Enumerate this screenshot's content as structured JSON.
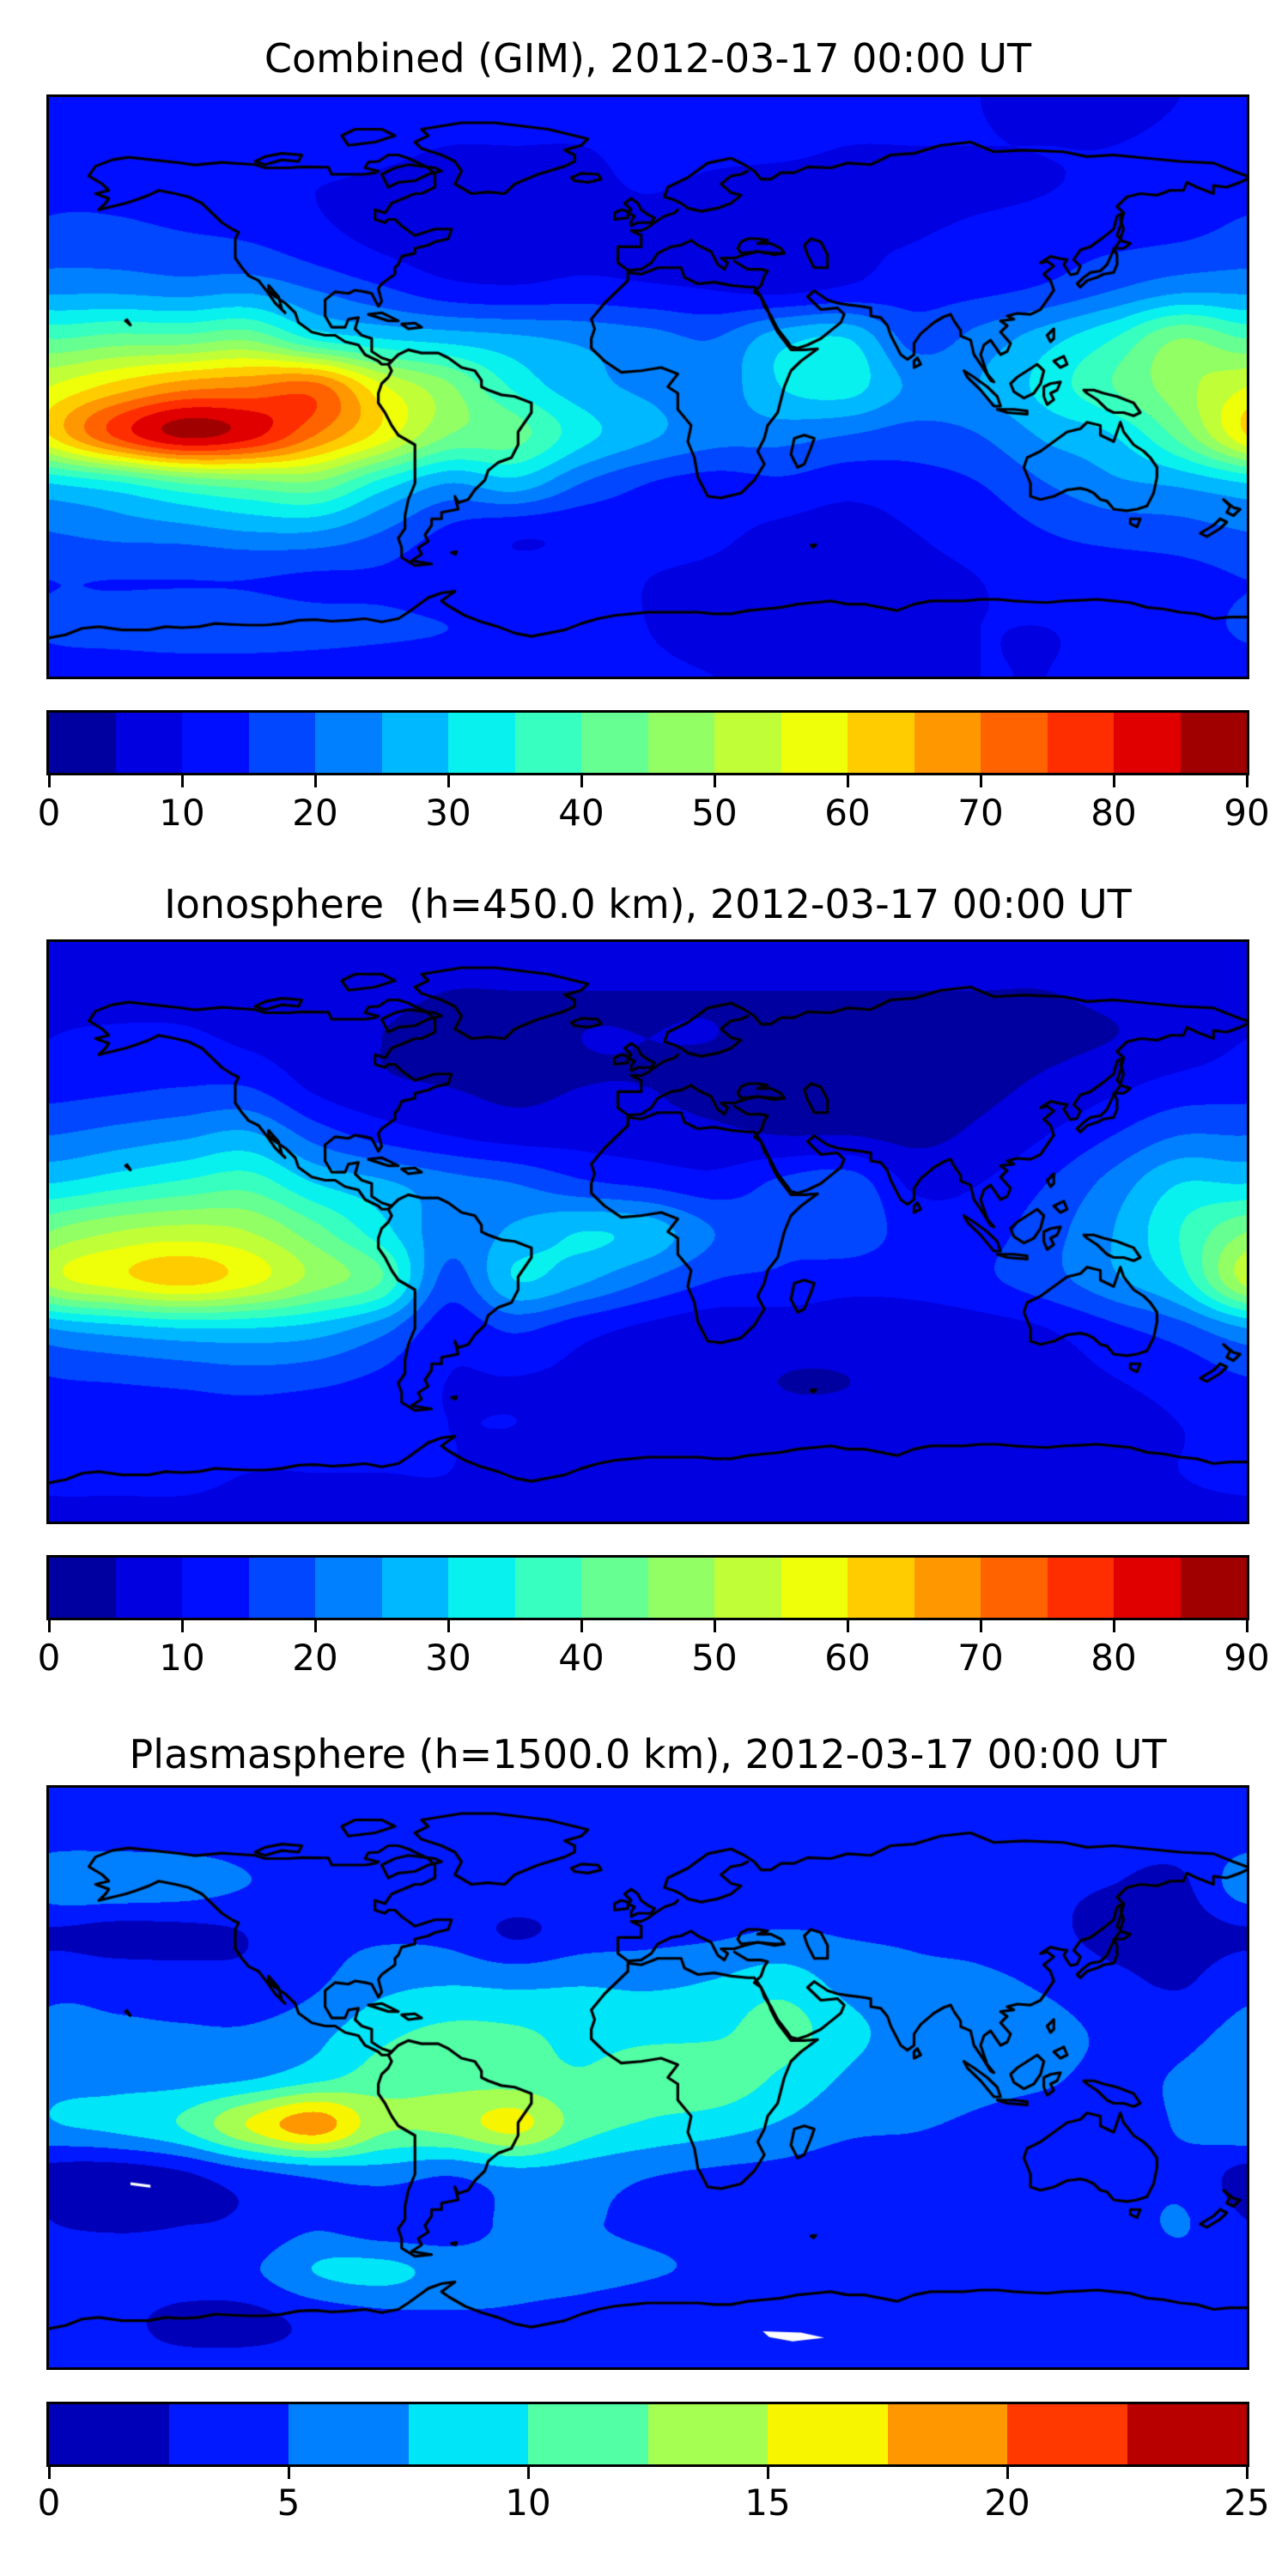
{
  "figure": {
    "background": "#ffffff",
    "line_color": "#000000"
  },
  "panels": [
    {
      "title": "Combined (GIM), 2012-03-17 00:00 UT"
    },
    {
      "title": "Ionosphere  (h=450.0 km), 2012-03-17 00:00 UT"
    },
    {
      "title": "Plasmasphere (h=1500.0 km), 2012-03-17 00:00 UT"
    }
  ],
  "chart_data": [
    {
      "type": "heatmap",
      "title": "Combined (GIM), 2012-03-17 00:00 UT",
      "projection": "equirectangular world map with coastlines",
      "xlabel": "",
      "ylabel": "",
      "lon": {
        "start": -180,
        "step": 20,
        "n": 19
      },
      "lat": {
        "start": 90,
        "step": -15,
        "n": 13
      },
      "vmin": 0,
      "vmax": 90,
      "n_levels": 18,
      "colormap": "jet",
      "legend_position": "bottom colorbar",
      "colorbar_ticks": [
        0,
        10,
        20,
        30,
        40,
        50,
        60,
        70,
        80,
        90
      ],
      "colorbar_tick_labels": [
        "0",
        "10",
        "20",
        "30",
        "40",
        "50",
        "60",
        "70",
        "80",
        "90"
      ],
      "values": [
        [
          12,
          12,
          12,
          12,
          12,
          12,
          12,
          12,
          12,
          12,
          12,
          12,
          12,
          11,
          10,
          9,
          9,
          10,
          12
        ],
        [
          13,
          13,
          13,
          12,
          12,
          11,
          10,
          10,
          10,
          11,
          11,
          11,
          10,
          10,
          10,
          10,
          10,
          11,
          13
        ],
        [
          14,
          14,
          13,
          12,
          10,
          9,
          8,
          8,
          9,
          10,
          9,
          8,
          8,
          8,
          9,
          10,
          11,
          12,
          14
        ],
        [
          17,
          17,
          16,
          15,
          12,
          9,
          7,
          7,
          8,
          8,
          8,
          8,
          9,
          10,
          12,
          13,
          14,
          15,
          17
        ],
        [
          24,
          24,
          23,
          24,
          20,
          16,
          12,
          11,
          12,
          11,
          10,
          9,
          11,
          13,
          14,
          16,
          20,
          24,
          24
        ],
        [
          40,
          42,
          42,
          44,
          34,
          30,
          28,
          26,
          24,
          22,
          20,
          28,
          30,
          18,
          22,
          28,
          35,
          45,
          40
        ],
        [
          55,
          62,
          68,
          70,
          72,
          56,
          46,
          34,
          27,
          24,
          22,
          30,
          32,
          24,
          25,
          32,
          40,
          48,
          55
        ],
        [
          60,
          76,
          86,
          82,
          70,
          58,
          45,
          42,
          32,
          26,
          22,
          22,
          20,
          18,
          20,
          26,
          30,
          42,
          60
        ],
        [
          30,
          34,
          40,
          43,
          44,
          33,
          25,
          28,
          20,
          15,
          13,
          14,
          12,
          13,
          15,
          20,
          24,
          26,
          30
        ],
        [
          20,
          22,
          23,
          25,
          25,
          20,
          14,
          11,
          11,
          12,
          11,
          9,
          8,
          10,
          12,
          15,
          17,
          18,
          20
        ],
        [
          15,
          15,
          15,
          15,
          14,
          14,
          12,
          12,
          12,
          10,
          9,
          8,
          8,
          9,
          10,
          12,
          12,
          13,
          15
        ],
        [
          16,
          17,
          18,
          18,
          17,
          16,
          15,
          14,
          12,
          10,
          8,
          8,
          8,
          9,
          10,
          10,
          11,
          12,
          16
        ],
        [
          12,
          12,
          12,
          12,
          12,
          12,
          12,
          12,
          12,
          11,
          10,
          9,
          9,
          9,
          10,
          10,
          11,
          11,
          12
        ]
      ],
      "mask_patches": []
    },
    {
      "type": "heatmap",
      "title": "Ionosphere  (h=450.0 km), 2012-03-17 00:00 UT",
      "projection": "equirectangular world map with coastlines",
      "xlabel": "",
      "ylabel": "",
      "lon": {
        "start": -180,
        "step": 20,
        "n": 19
      },
      "lat": {
        "start": 90,
        "step": -15,
        "n": 13
      },
      "vmin": 0,
      "vmax": 90,
      "n_levels": 18,
      "colormap": "jet",
      "legend_position": "bottom colorbar",
      "colorbar_ticks": [
        0,
        10,
        20,
        30,
        40,
        50,
        60,
        70,
        80,
        90
      ],
      "colorbar_tick_labels": [
        "0",
        "10",
        "20",
        "30",
        "40",
        "50",
        "60",
        "70",
        "80",
        "90"
      ],
      "values": [
        [
          7,
          7,
          7,
          7,
          7,
          7,
          7,
          7,
          7,
          7,
          7,
          7,
          7,
          7,
          7,
          7,
          7,
          7,
          7
        ],
        [
          8,
          8,
          8,
          8,
          7,
          6,
          5,
          5,
          5,
          5,
          5,
          5,
          5,
          5,
          5,
          5,
          6,
          7,
          8
        ],
        [
          10,
          11,
          11,
          9,
          7,
          5,
          4,
          4,
          5,
          5,
          5,
          4,
          4,
          4,
          4,
          4,
          5,
          7,
          10
        ],
        [
          13,
          14,
          15,
          15,
          9,
          6,
          5,
          4,
          5,
          5,
          4,
          4,
          4,
          4,
          4,
          6,
          9,
          12,
          13
        ],
        [
          20,
          22,
          24,
          26,
          18,
          13,
          10,
          8,
          8,
          7,
          6,
          5,
          5,
          4,
          6,
          10,
          15,
          20,
          20
        ],
        [
          30,
          33,
          36,
          38,
          30,
          26,
          22,
          20,
          16,
          14,
          12,
          16,
          18,
          9,
          10,
          15,
          22,
          30,
          30
        ],
        [
          45,
          50,
          52,
          50,
          42,
          32,
          22,
          26,
          30,
          28,
          20,
          16,
          18,
          13,
          13,
          18,
          25,
          35,
          45
        ],
        [
          52,
          58,
          62,
          57,
          48,
          40,
          18,
          30,
          26,
          20,
          15,
          14,
          12,
          12,
          14,
          18,
          24,
          32,
          52
        ],
        [
          25,
          28,
          30,
          30,
          28,
          22,
          12,
          16,
          12,
          9,
          7,
          7,
          7,
          7,
          8,
          10,
          14,
          18,
          25
        ],
        [
          15,
          16,
          17,
          18,
          17,
          14,
          10,
          10,
          9,
          8,
          6,
          5,
          5,
          6,
          6,
          8,
          10,
          12,
          15
        ],
        [
          12,
          12,
          12,
          12,
          11,
          11,
          10,
          10,
          9,
          8,
          7,
          6,
          6,
          6,
          7,
          8,
          9,
          10,
          12
        ],
        [
          11,
          11,
          11,
          10,
          10,
          10,
          10,
          9,
          9,
          8,
          8,
          8,
          8,
          8,
          8,
          8,
          9,
          10,
          11
        ],
        [
          9,
          9,
          9,
          9,
          9,
          9,
          9,
          9,
          9,
          9,
          8,
          8,
          8,
          8,
          8,
          9,
          9,
          9,
          9
        ]
      ],
      "mask_patches": []
    },
    {
      "type": "heatmap",
      "title": "Plasmasphere (h=1500.0 km), 2012-03-17 00:00 UT",
      "projection": "equirectangular world map with coastlines",
      "xlabel": "",
      "ylabel": "",
      "lon": {
        "start": -180,
        "step": 20,
        "n": 19
      },
      "lat": {
        "start": 90,
        "step": -15,
        "n": 13
      },
      "vmin": 0,
      "vmax": 25,
      "n_levels": 10,
      "colormap": "jet",
      "legend_position": "bottom colorbar",
      "colorbar_ticks": [
        0,
        5,
        10,
        15,
        20,
        25
      ],
      "colorbar_tick_labels": [
        "0",
        "5",
        "10",
        "15",
        "20",
        "25"
      ],
      "values": [
        [
          3.2,
          3.2,
          3.2,
          3.2,
          3.2,
          3.2,
          3.2,
          3.2,
          3.2,
          3.2,
          3.2,
          3.2,
          3.2,
          3.2,
          3.2,
          3.2,
          3.2,
          3.2,
          3.2
        ],
        [
          4,
          4,
          4,
          4,
          4,
          4,
          4,
          4.5,
          4.5,
          4,
          4,
          3.5,
          3.5,
          3.5,
          3.5,
          3.5,
          3.5,
          3.5,
          4
        ],
        [
          6.5,
          6.8,
          6.3,
          5,
          4.5,
          4,
          4,
          4.5,
          4,
          4,
          4,
          3.5,
          3.5,
          3.5,
          3.5,
          3,
          2.5,
          2,
          6.5
        ],
        [
          2.2,
          1.6,
          1.8,
          2.6,
          4.2,
          4.6,
          4.2,
          2.2,
          3.6,
          4.2,
          4.6,
          5.2,
          4.8,
          4.6,
          4.2,
          3.2,
          1.6,
          1.4,
          2.2
        ],
        [
          4.2,
          4.0,
          3.6,
          3.2,
          4.6,
          6.6,
          7.2,
          6.8,
          7.2,
          7.0,
          7.6,
          8.8,
          6.6,
          5.6,
          5.4,
          4.6,
          3.2,
          2.2,
          4.2
        ],
        [
          5.6,
          5.4,
          5.2,
          5.2,
          6.6,
          9.2,
          10.4,
          10.2,
          9.2,
          9.2,
          9.4,
          11.2,
          8.2,
          6.6,
          6.2,
          5.6,
          4.6,
          4.2,
          5.6
        ],
        [
          6.6,
          6.6,
          6.6,
          7.2,
          9.2,
          11.2,
          11.6,
          11.2,
          10.2,
          11.2,
          11.6,
          9.6,
          7.2,
          6.2,
          5.6,
          5.2,
          4.6,
          5.2,
          6.6
        ],
        [
          7.2,
          8.2,
          10.2,
          15.2,
          18.8,
          13.2,
          13.4,
          15.8,
          11.2,
          9.6,
          8.6,
          7.2,
          5.6,
          5.2,
          4.6,
          4.2,
          4.2,
          5.2,
          7.2
        ],
        [
          1.6,
          1.2,
          2.2,
          4.2,
          5.6,
          6.2,
          5.2,
          6.6,
          6.2,
          5.2,
          4.6,
          4.2,
          3.6,
          3.6,
          3.4,
          3.2,
          3.6,
          4.4,
          1.6
        ],
        [
          2.6,
          2.0,
          2.4,
          2.8,
          4.6,
          3.2,
          3.4,
          5.6,
          5.2,
          4.6,
          4.2,
          3.6,
          3.2,
          3.2,
          3.2,
          3.2,
          3.6,
          5.2,
          2.6
        ],
        [
          4.6,
          4.4,
          4.2,
          4.6,
          7.6,
          8.2,
          6.6,
          5.8,
          5.6,
          5.2,
          4.6,
          3.6,
          3.6,
          3.6,
          3.6,
          3.6,
          3.6,
          4.2,
          4.6
        ],
        [
          3.6,
          3.2,
          1.8,
          1.8,
          3.2,
          4.2,
          4.6,
          4.6,
          4.2,
          3.6,
          3.2,
          2.8,
          3.2,
          3.6,
          3.6,
          3.6,
          3.6,
          3.6,
          3.6
        ],
        [
          3.2,
          3.2,
          3.2,
          3.2,
          3.2,
          3.2,
          3.2,
          3.2,
          3.2,
          3.2,
          3.2,
          3.2,
          3.2,
          3.2,
          3.2,
          3.2,
          3.2,
          3.2,
          3.2
        ]
      ],
      "mask_patches": [
        {
          "type": "polygon",
          "points": [
            [
              -155.5,
              -32.5
            ],
            [
              -149.5,
              -33.3
            ],
            [
              -149.5,
              -34.2
            ],
            [
              -155.5,
              -33.4
            ]
          ]
        },
        {
          "type": "polygon",
          "points": [
            [
              34.5,
              -78.8
            ],
            [
              46,
              -79.2
            ],
            [
              53,
              -80.8
            ],
            [
              43.5,
              -81.9
            ],
            [
              36.5,
              -80.6
            ]
          ]
        }
      ]
    }
  ]
}
